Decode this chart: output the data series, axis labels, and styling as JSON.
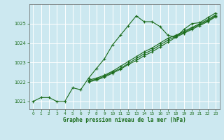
{
  "title": "Graphe pression niveau de la mer (hPa)",
  "background_color": "#cce8f0",
  "grid_color": "#ffffff",
  "line_color": "#1a6b1a",
  "xlim": [
    -0.5,
    23.5
  ],
  "ylim": [
    1020.6,
    1026.0
  ],
  "xticks": [
    0,
    1,
    2,
    3,
    4,
    5,
    6,
    7,
    8,
    9,
    10,
    11,
    12,
    13,
    14,
    15,
    16,
    17,
    18,
    19,
    20,
    21,
    22,
    23
  ],
  "yticks": [
    1021,
    1022,
    1023,
    1024,
    1025
  ],
  "series1": [
    [
      0,
      1021.0
    ],
    [
      1,
      1021.2
    ],
    [
      2,
      1021.2
    ],
    [
      3,
      1021.0
    ],
    [
      4,
      1021.0
    ],
    [
      5,
      1021.7
    ],
    [
      6,
      1021.6
    ],
    [
      7,
      1022.2
    ],
    [
      8,
      1022.7
    ],
    [
      9,
      1023.2
    ],
    [
      10,
      1023.9
    ],
    [
      11,
      1024.4
    ],
    [
      12,
      1024.9
    ],
    [
      13,
      1025.4
    ],
    [
      14,
      1025.1
    ],
    [
      15,
      1025.1
    ],
    [
      16,
      1024.85
    ],
    [
      17,
      1024.4
    ],
    [
      18,
      1024.3
    ],
    [
      19,
      1024.7
    ],
    [
      20,
      1025.0
    ],
    [
      21,
      1025.05
    ],
    [
      22,
      1025.3
    ],
    [
      23,
      1025.55
    ]
  ],
  "series2": [
    [
      7,
      1022.0
    ],
    [
      8,
      1022.1
    ],
    [
      9,
      1022.25
    ],
    [
      10,
      1022.45
    ],
    [
      11,
      1022.65
    ],
    [
      12,
      1022.9
    ],
    [
      13,
      1023.1
    ],
    [
      14,
      1023.35
    ],
    [
      15,
      1023.55
    ],
    [
      16,
      1023.8
    ],
    [
      17,
      1024.05
    ],
    [
      18,
      1024.3
    ],
    [
      19,
      1024.5
    ],
    [
      20,
      1024.7
    ],
    [
      21,
      1024.9
    ],
    [
      22,
      1025.1
    ],
    [
      23,
      1025.35
    ]
  ],
  "series3": [
    [
      7,
      1022.05
    ],
    [
      8,
      1022.15
    ],
    [
      9,
      1022.3
    ],
    [
      10,
      1022.5
    ],
    [
      11,
      1022.7
    ],
    [
      12,
      1022.95
    ],
    [
      13,
      1023.2
    ],
    [
      14,
      1023.45
    ],
    [
      15,
      1023.65
    ],
    [
      16,
      1023.9
    ],
    [
      17,
      1024.15
    ],
    [
      18,
      1024.35
    ],
    [
      19,
      1024.55
    ],
    [
      20,
      1024.75
    ],
    [
      21,
      1024.95
    ],
    [
      22,
      1025.15
    ],
    [
      23,
      1025.4
    ]
  ],
  "series4": [
    [
      7,
      1022.1
    ],
    [
      8,
      1022.2
    ],
    [
      9,
      1022.35
    ],
    [
      10,
      1022.55
    ],
    [
      11,
      1022.8
    ],
    [
      12,
      1023.05
    ],
    [
      13,
      1023.3
    ],
    [
      14,
      1023.55
    ],
    [
      15,
      1023.75
    ],
    [
      16,
      1024.0
    ],
    [
      17,
      1024.25
    ],
    [
      18,
      1024.4
    ],
    [
      19,
      1024.6
    ],
    [
      20,
      1024.8
    ],
    [
      21,
      1025.0
    ],
    [
      22,
      1025.2
    ],
    [
      23,
      1025.45
    ]
  ]
}
